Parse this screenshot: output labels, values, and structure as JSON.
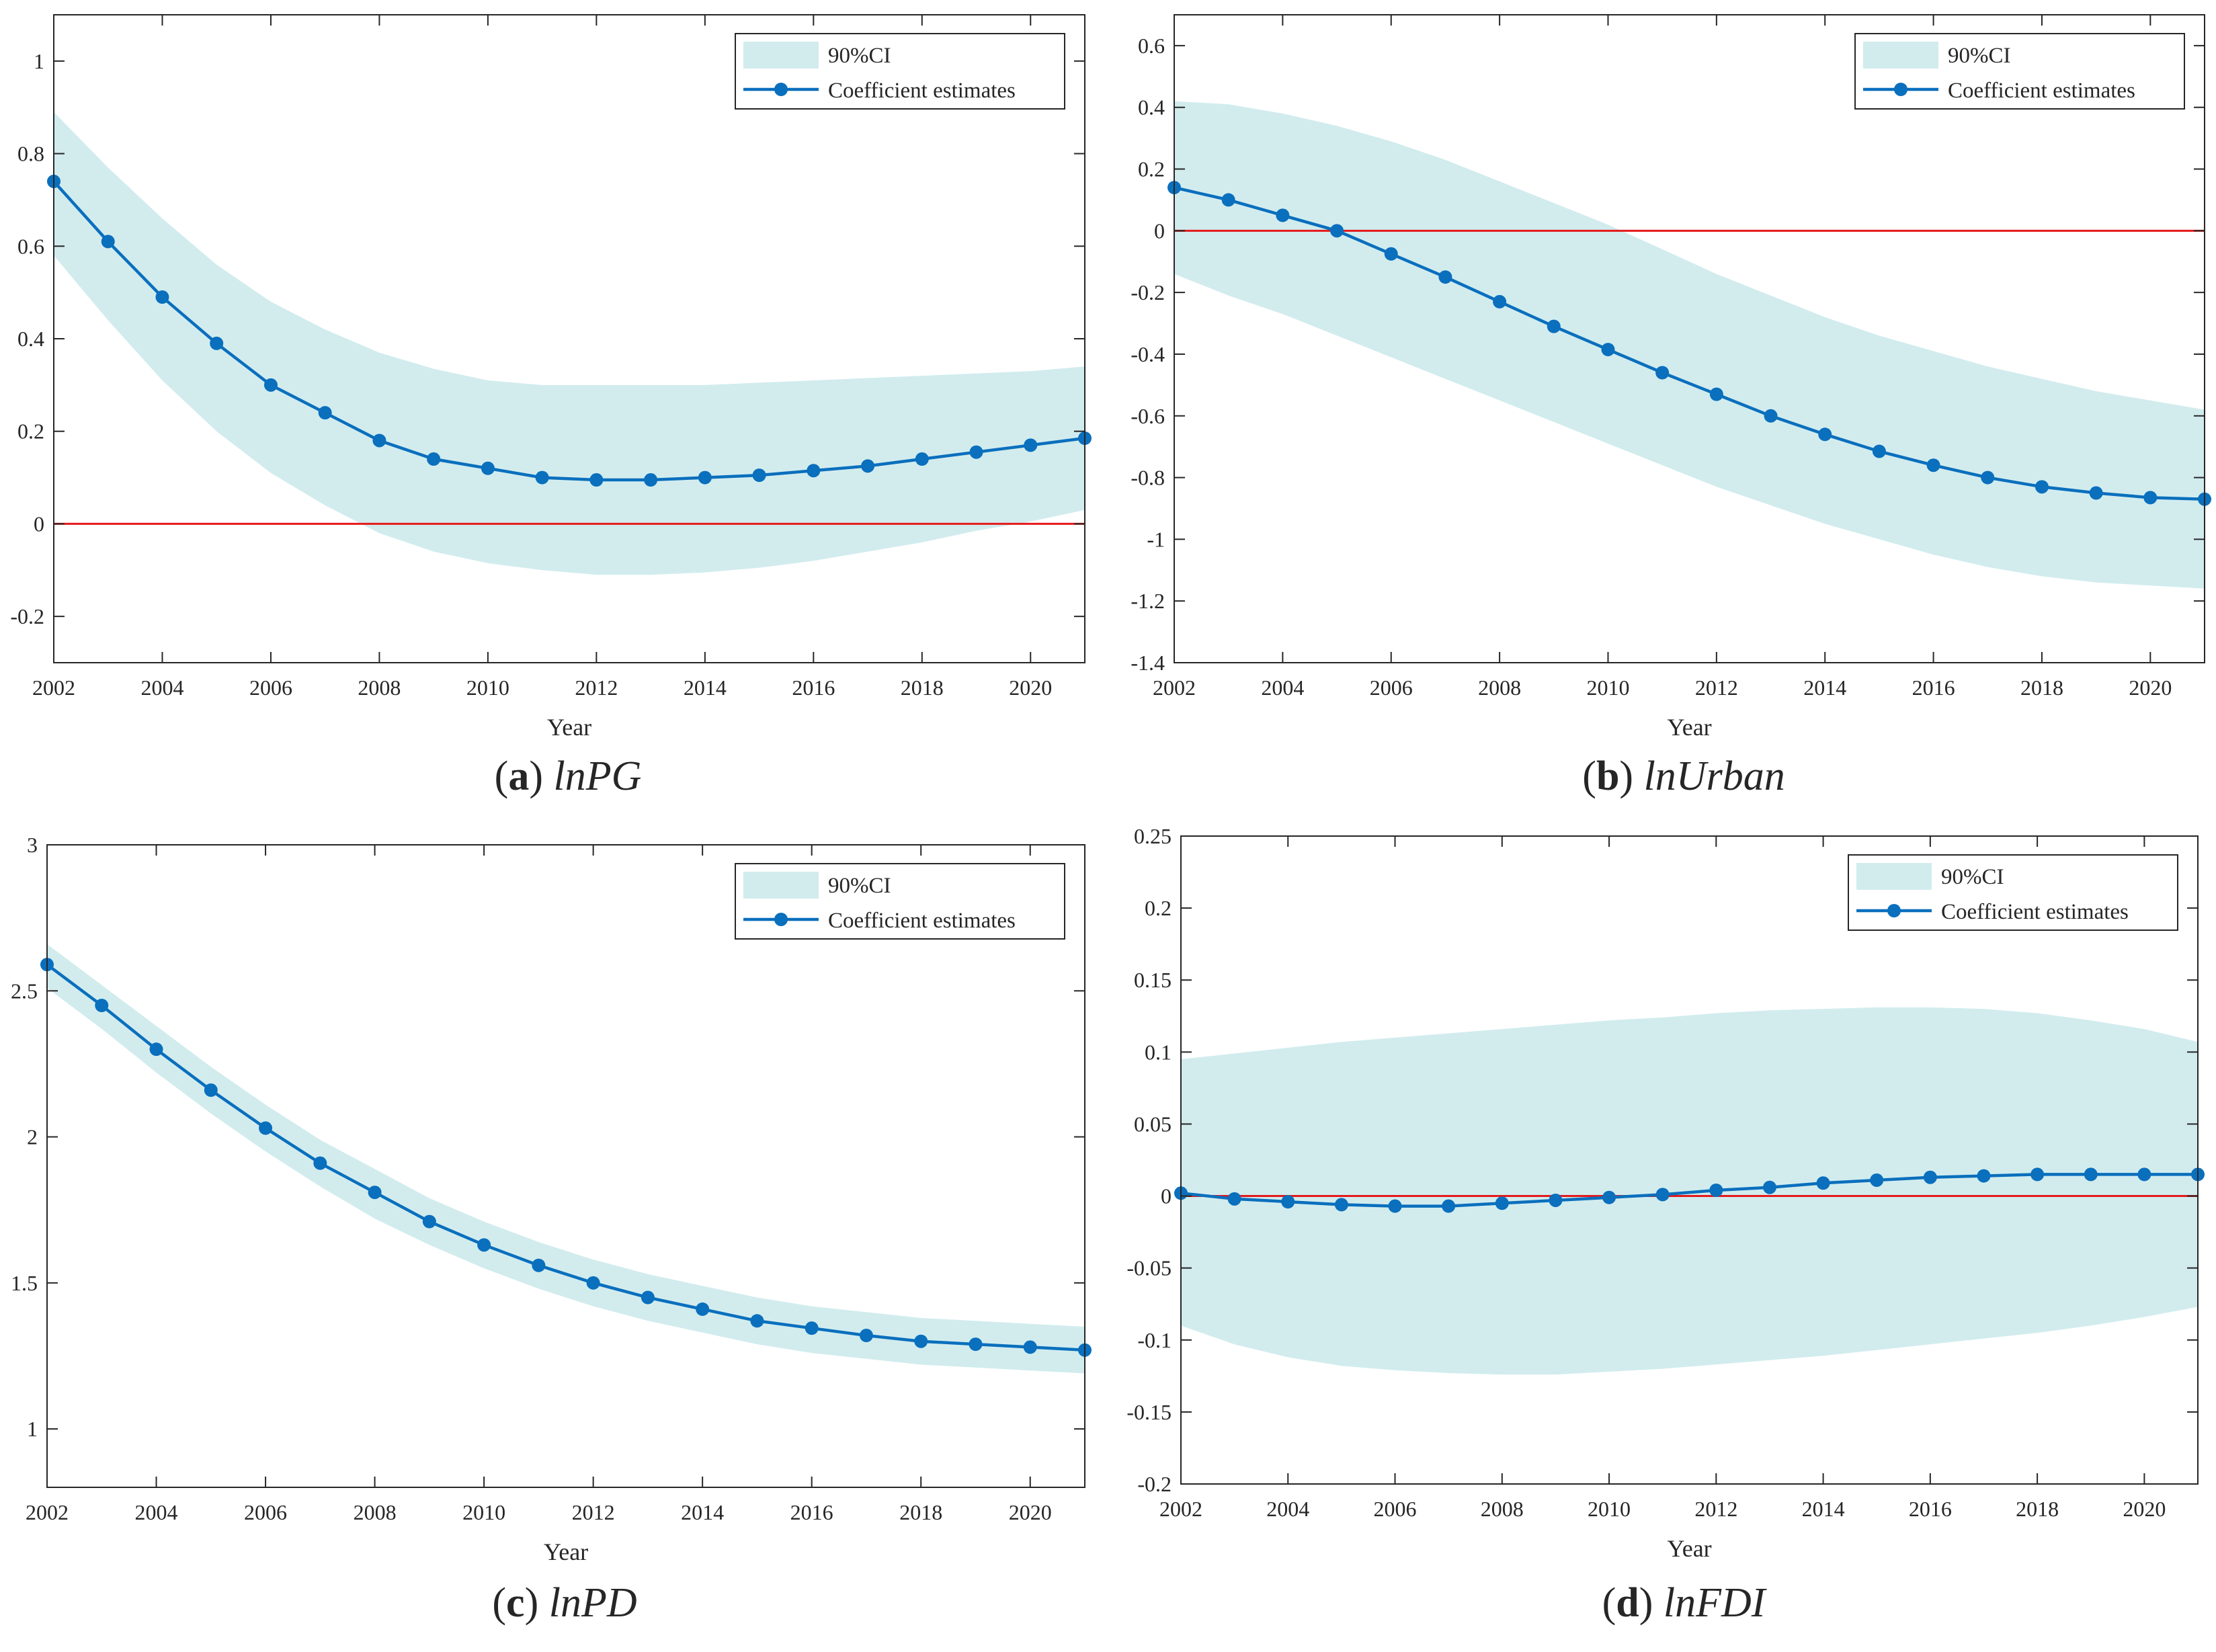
{
  "chart_data": [
    {
      "id": "a",
      "type": "line",
      "title": "",
      "caption": {
        "letter": "a",
        "variable": "lnPG"
      },
      "xlabel": "Year",
      "ylabel": "",
      "xlim": [
        2002,
        2021
      ],
      "ylim": [
        -0.3,
        1.1
      ],
      "xticks": [
        2002,
        2004,
        2006,
        2008,
        2010,
        2012,
        2014,
        2016,
        2018,
        2020
      ],
      "xtick_labels": [
        "2002",
        "2004",
        "2006",
        "2008",
        "2010",
        "2012",
        "2014",
        "2016",
        "2018",
        "2020"
      ],
      "yticks": [
        -0.2,
        0,
        0.2,
        0.4,
        0.6,
        0.8,
        1
      ],
      "ytick_labels": [
        "-0.2",
        "0",
        "0.2",
        "0.4",
        "0.6",
        "0.8",
        "1"
      ],
      "legend": {
        "position": "top-right",
        "ci_label": "90%CI",
        "line_label": "Coefficient estimates"
      },
      "reference_line": 0,
      "x": [
        2002,
        2003,
        2004,
        2005,
        2006,
        2007,
        2008,
        2009,
        2010,
        2011,
        2012,
        2013,
        2014,
        2015,
        2016,
        2017,
        2018,
        2019,
        2020,
        2021
      ],
      "series": [
        {
          "name": "Coefficient estimates",
          "values": [
            0.74,
            0.61,
            0.49,
            0.39,
            0.3,
            0.24,
            0.18,
            0.14,
            0.12,
            0.1,
            0.095,
            0.095,
            0.1,
            0.105,
            0.115,
            0.125,
            0.14,
            0.155,
            0.17,
            0.185
          ]
        }
      ],
      "ci_lower": [
        0.58,
        0.44,
        0.31,
        0.2,
        0.11,
        0.04,
        -0.02,
        -0.06,
        -0.085,
        -0.1,
        -0.11,
        -0.11,
        -0.105,
        -0.095,
        -0.08,
        -0.06,
        -0.04,
        -0.015,
        0.005,
        0.03
      ],
      "ci_upper": [
        0.89,
        0.77,
        0.66,
        0.56,
        0.48,
        0.42,
        0.37,
        0.335,
        0.31,
        0.3,
        0.3,
        0.3,
        0.3,
        0.305,
        0.31,
        0.315,
        0.32,
        0.325,
        0.33,
        0.34
      ]
    },
    {
      "id": "b",
      "type": "line",
      "title": "",
      "caption": {
        "letter": "b",
        "variable": "lnUrban"
      },
      "xlabel": "Year",
      "ylabel": "",
      "xlim": [
        2002,
        2021
      ],
      "ylim": [
        -1.4,
        0.7
      ],
      "xticks": [
        2002,
        2004,
        2006,
        2008,
        2010,
        2012,
        2014,
        2016,
        2018,
        2020
      ],
      "xtick_labels": [
        "2002",
        "2004",
        "2006",
        "2008",
        "2010",
        "2012",
        "2014",
        "2016",
        "2018",
        "2020"
      ],
      "yticks": [
        -1.4,
        -1.2,
        -1,
        -0.8,
        -0.6,
        -0.4,
        -0.2,
        0,
        0.2,
        0.4,
        0.6
      ],
      "ytick_labels": [
        "-1.4",
        "-1.2",
        "-1",
        "-0.8",
        "-0.6",
        "-0.4",
        "-0.2",
        "0",
        "0.2",
        "0.4",
        "0.6"
      ],
      "legend": {
        "position": "top-right",
        "ci_label": "90%CI",
        "line_label": "Coefficient estimates"
      },
      "reference_line": 0,
      "x": [
        2002,
        2003,
        2004,
        2005,
        2006,
        2007,
        2008,
        2009,
        2010,
        2011,
        2012,
        2013,
        2014,
        2015,
        2016,
        2017,
        2018,
        2019,
        2020,
        2021
      ],
      "series": [
        {
          "name": "Coefficient estimates",
          "values": [
            0.14,
            0.1,
            0.05,
            0.0,
            -0.075,
            -0.15,
            -0.23,
            -0.31,
            -0.385,
            -0.46,
            -0.53,
            -0.6,
            -0.66,
            -0.715,
            -0.76,
            -0.8,
            -0.83,
            -0.85,
            -0.865,
            -0.87
          ]
        }
      ],
      "ci_lower": [
        -0.14,
        -0.21,
        -0.27,
        -0.34,
        -0.41,
        -0.48,
        -0.55,
        -0.62,
        -0.69,
        -0.76,
        -0.83,
        -0.89,
        -0.95,
        -1.0,
        -1.05,
        -1.09,
        -1.12,
        -1.14,
        -1.15,
        -1.16
      ],
      "ci_upper": [
        0.42,
        0.41,
        0.38,
        0.34,
        0.29,
        0.23,
        0.16,
        0.09,
        0.02,
        -0.06,
        -0.14,
        -0.21,
        -0.28,
        -0.34,
        -0.39,
        -0.44,
        -0.48,
        -0.52,
        -0.55,
        -0.58
      ]
    },
    {
      "id": "c",
      "type": "line",
      "title": "",
      "caption": {
        "letter": "c",
        "variable": "lnPD"
      },
      "xlabel": "Year",
      "ylabel": "",
      "xlim": [
        2002,
        2021
      ],
      "ylim": [
        0.8,
        3.0
      ],
      "xticks": [
        2002,
        2004,
        2006,
        2008,
        2010,
        2012,
        2014,
        2016,
        2018,
        2020
      ],
      "xtick_labels": [
        "2002",
        "2004",
        "2006",
        "2008",
        "2010",
        "2012",
        "2014",
        "2016",
        "2018",
        "2020"
      ],
      "yticks": [
        1,
        1.5,
        2,
        2.5,
        3
      ],
      "ytick_labels": [
        "1",
        "1.5",
        "2",
        "2.5",
        "3"
      ],
      "legend": {
        "position": "top-right",
        "ci_label": "90%CI",
        "line_label": "Coefficient estimates"
      },
      "reference_line": null,
      "x": [
        2002,
        2003,
        2004,
        2005,
        2006,
        2007,
        2008,
        2009,
        2010,
        2011,
        2012,
        2013,
        2014,
        2015,
        2016,
        2017,
        2018,
        2019,
        2020,
        2021
      ],
      "series": [
        {
          "name": "Coefficient estimates",
          "values": [
            2.59,
            2.45,
            2.3,
            2.16,
            2.03,
            1.91,
            1.81,
            1.71,
            1.63,
            1.56,
            1.5,
            1.45,
            1.41,
            1.37,
            1.345,
            1.32,
            1.3,
            1.29,
            1.28,
            1.27
          ]
        }
      ],
      "ci_lower": [
        2.51,
        2.37,
        2.22,
        2.08,
        1.95,
        1.83,
        1.72,
        1.63,
        1.55,
        1.48,
        1.42,
        1.37,
        1.33,
        1.29,
        1.26,
        1.24,
        1.22,
        1.21,
        1.2,
        1.19
      ],
      "ci_upper": [
        2.66,
        2.52,
        2.38,
        2.24,
        2.11,
        1.99,
        1.89,
        1.79,
        1.71,
        1.64,
        1.58,
        1.53,
        1.49,
        1.45,
        1.42,
        1.4,
        1.38,
        1.37,
        1.36,
        1.35
      ]
    },
    {
      "id": "d",
      "type": "line",
      "title": "",
      "caption": {
        "letter": "d",
        "variable": "lnFDI"
      },
      "xlabel": "Year",
      "ylabel": "",
      "xlim": [
        2002,
        2021
      ],
      "ylim": [
        -0.2,
        0.25
      ],
      "xticks": [
        2002,
        2004,
        2006,
        2008,
        2010,
        2012,
        2014,
        2016,
        2018,
        2020
      ],
      "xtick_labels": [
        "2002",
        "2004",
        "2006",
        "2008",
        "2010",
        "2012",
        "2014",
        "2016",
        "2018",
        "2020"
      ],
      "yticks": [
        -0.2,
        -0.15,
        -0.1,
        -0.05,
        0,
        0.05,
        0.1,
        0.15,
        0.2,
        0.25
      ],
      "ytick_labels": [
        "-0.2",
        "-0.15",
        "-0.1",
        "-0.05",
        "0",
        "0.05",
        "0.1",
        "0.15",
        "0.2",
        "0.25"
      ],
      "legend": {
        "position": "top-right",
        "ci_label": "90%CI",
        "line_label": "Coefficient estimates"
      },
      "reference_line": 0,
      "x": [
        2002,
        2003,
        2004,
        2005,
        2006,
        2007,
        2008,
        2009,
        2010,
        2011,
        2012,
        2013,
        2014,
        2015,
        2016,
        2017,
        2018,
        2019,
        2020,
        2021
      ],
      "series": [
        {
          "name": "Coefficient estimates",
          "values": [
            0.002,
            -0.002,
            -0.004,
            -0.006,
            -0.007,
            -0.007,
            -0.005,
            -0.003,
            -0.001,
            0.001,
            0.004,
            0.006,
            0.009,
            0.011,
            0.013,
            0.014,
            0.015,
            0.015,
            0.015,
            0.015
          ]
        }
      ],
      "ci_lower": [
        -0.09,
        -0.103,
        -0.112,
        -0.118,
        -0.121,
        -0.123,
        -0.124,
        -0.124,
        -0.122,
        -0.12,
        -0.117,
        -0.114,
        -0.111,
        -0.107,
        -0.103,
        -0.099,
        -0.095,
        -0.09,
        -0.084,
        -0.077
      ],
      "ci_upper": [
        0.095,
        0.099,
        0.103,
        0.107,
        0.11,
        0.113,
        0.116,
        0.119,
        0.122,
        0.124,
        0.127,
        0.129,
        0.13,
        0.131,
        0.131,
        0.13,
        0.127,
        0.122,
        0.116,
        0.107
      ]
    }
  ],
  "colors": {
    "ci_band": "#d2ecee",
    "line": "#0a6fbd",
    "marker": "#0a6fbd",
    "zero_line": "#e41a1c",
    "axis": "#262626"
  }
}
